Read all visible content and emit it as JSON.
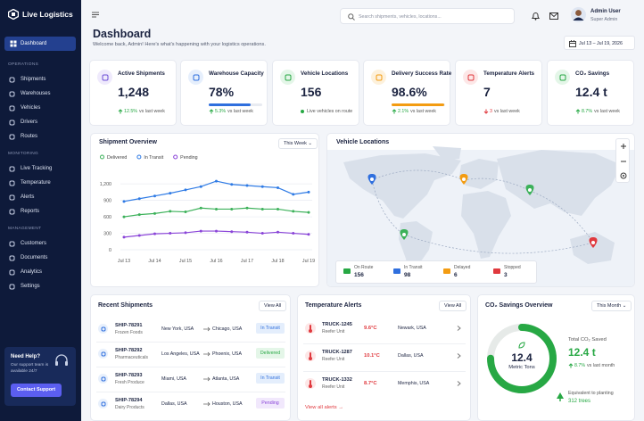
{
  "sidebar": {
    "brand": "Live Logistics",
    "active": "Dashboard",
    "sections": [
      {
        "title": "OPERATIONS",
        "items": [
          "Shipments",
          "Warehouses",
          "Vehicles",
          "Drivers",
          "Routes"
        ]
      },
      {
        "title": "MONITORING",
        "items": [
          "Live Tracking",
          "Temperature",
          "Alerts",
          "Reports"
        ]
      },
      {
        "title": "MANAGEMENT",
        "items": [
          "Customers",
          "Documents",
          "Analytics",
          "Settings"
        ]
      }
    ],
    "help": {
      "title": "Need Help?",
      "text": "Our support team is available 24/7",
      "button": "Contact Support"
    }
  },
  "topbar": {
    "search_placeholder": "Search shipments, vehicles, locations...",
    "user": {
      "name": "Admin User",
      "role": "Super Admin"
    }
  },
  "header": {
    "title": "Dashboard",
    "subtitle": "Welcome back, Admin! Here's what's happening with your logistics operations.",
    "date_range": "Jul 13 – Jul 19, 2026"
  },
  "kpis": [
    {
      "title": "Active Shipments",
      "value": "1,248",
      "change": "12.5%",
      "note": "vs last week",
      "trend": "up",
      "color": "#6d4fd6",
      "bg": "#efeafc"
    },
    {
      "title": "Warehouse Capacity",
      "value": "78%",
      "progress": 78,
      "change": "5.3%",
      "note": "vs last week",
      "trend": "up",
      "color": "#2f6fde",
      "bg": "#e6effc"
    },
    {
      "title": "Vehicle Locations",
      "value": "156",
      "note": "Live vehicles on route",
      "trend": "live",
      "color": "#27a844",
      "bg": "#e4f6e8"
    },
    {
      "title": "Delivery Success Rate",
      "value": "98.6%",
      "progress": 98.6,
      "change": "2.1%",
      "note": "vs last week",
      "trend": "up",
      "color": "#f39c12",
      "bg": "#fdf1dc"
    },
    {
      "title": "Temperature Alerts",
      "value": "7",
      "change": "3",
      "note": "vs last week",
      "trend": "down",
      "color": "#e0393e",
      "bg": "#fde7e7"
    },
    {
      "title": "CO₂ Savings",
      "value": "12.4 t",
      "change": "8.7%",
      "note": "vs last week",
      "trend": "up",
      "color": "#27a844",
      "bg": "#e4f6e8"
    }
  ],
  "shipment_overview": {
    "title": "Shipment Overview",
    "filter": "This Week",
    "chart_data": {
      "type": "line",
      "categories": [
        "Jul 13",
        null,
        "Jul 14",
        null,
        "Jul 15",
        null,
        "Jul 16",
        null,
        "Jul 17",
        null,
        "Jul 18",
        null,
        "Jul 19"
      ],
      "series": [
        {
          "name": "Delivered",
          "color": "#3cb15a",
          "values": [
            600,
            640,
            660,
            700,
            690,
            760,
            740,
            740,
            760,
            740,
            740,
            700,
            680
          ]
        },
        {
          "name": "In Transit",
          "color": "#2f7be5",
          "values": [
            880,
            930,
            980,
            1030,
            1090,
            1150,
            1250,
            1190,
            1170,
            1150,
            1130,
            1010,
            1050
          ]
        },
        {
          "name": "Pending",
          "color": "#8a44d8",
          "values": [
            230,
            260,
            290,
            300,
            310,
            340,
            340,
            330,
            320,
            300,
            320,
            300,
            280
          ]
        }
      ],
      "ylim": [
        0,
        1300
      ],
      "yticks": [
        0,
        300,
        600,
        900,
        {
          "value": 1200,
          "label": "1,200"
        }
      ],
      "grid": true
    }
  },
  "vehicle_map": {
    "title": "Vehicle Locations",
    "legend": [
      {
        "label": "On Route",
        "value": "156",
        "color": "#27a844"
      },
      {
        "label": "In Transit",
        "value": "98",
        "color": "#2f6fde"
      },
      {
        "label": "Delayed",
        "value": "6",
        "color": "#f39c12"
      },
      {
        "label": "Stopped",
        "value": "3",
        "color": "#e0393e"
      }
    ]
  },
  "recent_shipments": {
    "title": "Recent Shipments",
    "view_all": "View All",
    "rows": [
      {
        "id": "SHIP-78291",
        "cargo": "Frozen Foods",
        "from": "New York, USA",
        "to": "Chicago, USA",
        "status": "In Transit"
      },
      {
        "id": "SHIP-78292",
        "cargo": "Pharmaceuticals",
        "from": "Los Angeles, USA",
        "to": "Phoenix, USA",
        "status": "Delivered"
      },
      {
        "id": "SHIP-78293",
        "cargo": "Fresh Produce",
        "from": "Miami, USA",
        "to": "Atlanta, USA",
        "status": "In Transit"
      },
      {
        "id": "SHIP-78294",
        "cargo": "Dairy Products",
        "from": "Dallas, USA",
        "to": "Houston, USA",
        "status": "Pending"
      }
    ]
  },
  "temperature_alerts": {
    "title": "Temperature Alerts",
    "view_all": "View All",
    "rows": [
      {
        "id": "TRUCK-1245",
        "unit": "Reefer Unit",
        "temp": "9.6°C",
        "location": "Newark, USA"
      },
      {
        "id": "TRUCK-1287",
        "unit": "Reefer Unit",
        "temp": "10.1°C",
        "location": "Dallas, USA"
      },
      {
        "id": "TRUCK-1332",
        "unit": "Reefer Unit",
        "temp": "8.7°C",
        "location": "Memphis, USA"
      }
    ],
    "footer": "View all alerts →"
  },
  "co2": {
    "title": "CO₂ Savings Overview",
    "filter": "This Month",
    "donut_value": "12.4",
    "donut_unit": "Metric Tons",
    "progress": 75,
    "total_label": "Total CO₂ Saved",
    "total": "12.4 t",
    "change": "8.7%",
    "change_note": "vs last month",
    "equivalent": "Equivalent to planting",
    "trees": "312 trees"
  }
}
